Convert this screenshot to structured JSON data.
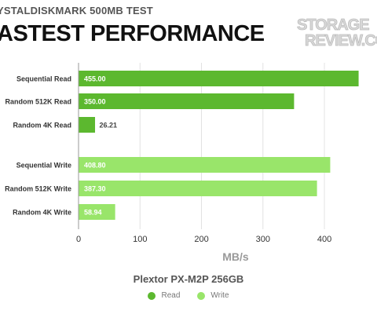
{
  "header": {
    "subtitle": "YSTALDISKMARK 500MB TEST",
    "title": "ASTEST PERFORMANCE"
  },
  "logo": {
    "line1": "STORAGE",
    "line2": "REVIEW.CO"
  },
  "chart_data": {
    "type": "bar",
    "orientation": "horizontal",
    "title": "ASTEST PERFORMANCE",
    "subtitle": "YSTALDISKMARK 500MB TEST",
    "xlabel": "MB/s",
    "ylabel": "",
    "xlim": [
      0,
      460
    ],
    "xticks": [
      0,
      100,
      200,
      300,
      400
    ],
    "grid": true,
    "legend_title": "Plextor PX-M2P 256GB",
    "legend_placement": "bottom",
    "series": [
      {
        "name": "Read",
        "color": "#5cb82f",
        "label_color": "#ffffff"
      },
      {
        "name": "Write",
        "color": "#99e56a",
        "label_color": "#ffffff"
      }
    ],
    "bars": [
      {
        "category": "Sequential Read",
        "value": 455.0,
        "label": "455.00",
        "series": "Read"
      },
      {
        "category": "Random 512K Read",
        "value": 350.0,
        "label": "350.00",
        "series": "Read"
      },
      {
        "category": "Random 4K Read",
        "value": 26.21,
        "label": "26.21",
        "series": "Read"
      },
      {
        "category": "Sequential Write",
        "value": 408.8,
        "label": "408.80",
        "series": "Write"
      },
      {
        "category": "Random 512K Write",
        "value": 387.3,
        "label": "387.30",
        "series": "Write"
      },
      {
        "category": "Random 4K Write",
        "value": 58.94,
        "label": "58.94",
        "series": "Write"
      }
    ]
  }
}
